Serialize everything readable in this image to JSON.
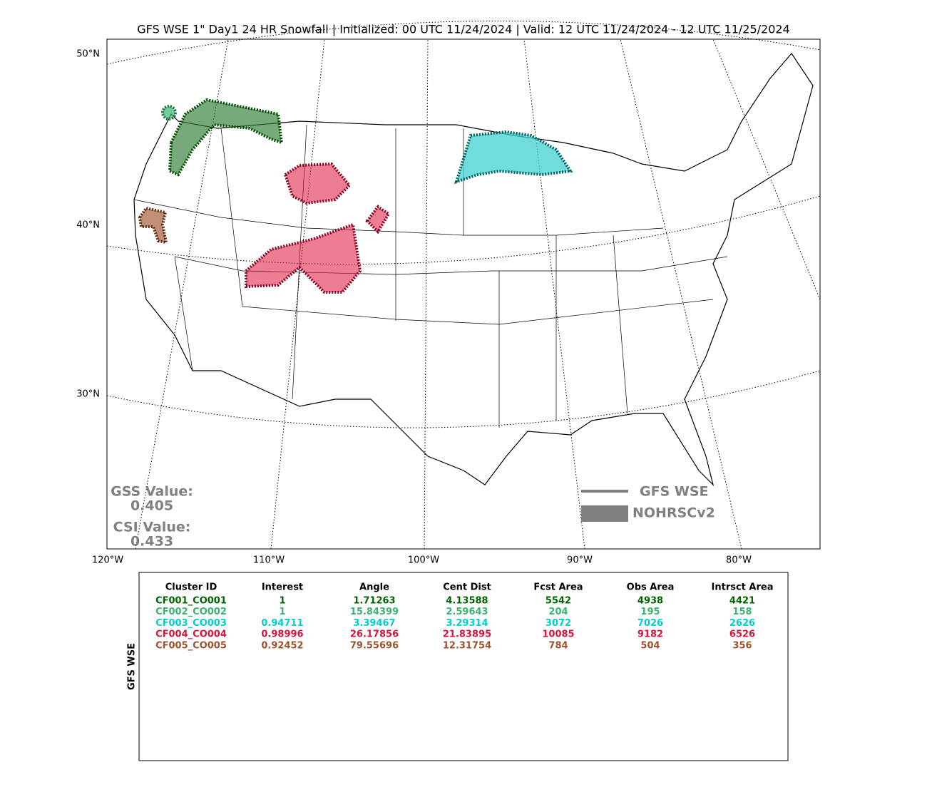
{
  "title": "GFS WSE 1\" Day1 24 HR Snowfall | Initialized: 00 UTC 11/24/2024 | Valid: 12 UTC 11/24/2024 - 12 UTC 11/25/2024",
  "map": {
    "lat_labels": [
      "50°N",
      "40°N",
      "30°N"
    ],
    "lon_labels": [
      "120°W",
      "110°W",
      "100°W",
      "90°W",
      "80°W"
    ]
  },
  "scores": {
    "gss_label": "GSS Value:",
    "gss": 0.405,
    "csi_label": "CSI Value:",
    "csi": 0.433
  },
  "legend": [
    "GFS WSE",
    "NOHRSCv2"
  ],
  "table": {
    "side_label": "GFS WSE",
    "header": [
      "Cluster ID",
      "Interest",
      "Angle",
      "Cent Dist",
      "Fcst Area",
      "Obs Area",
      "Intrsct Area"
    ],
    "rows": [
      [
        "CF001_CO001",
        1,
        1.71263,
        4.13588,
        5542,
        4938,
        4421
      ],
      [
        "CF002_CO002",
        1,
        15.84399,
        2.59643,
        204,
        195,
        158
      ],
      [
        "CF003_CO003",
        0.94711,
        3.39467,
        3.29314,
        3072,
        7026,
        2626
      ],
      [
        "CF004_CO004",
        0.98996,
        26.17856,
        21.83895,
        10085,
        9182,
        6526
      ],
      [
        "CF005_CO005",
        0.92452,
        79.55696,
        12.31754,
        784,
        504,
        356
      ]
    ],
    "row_colors": [
      "#006400",
      "#3cb371",
      "#00ced1",
      "#dc143c",
      "#a0522d"
    ]
  }
}
